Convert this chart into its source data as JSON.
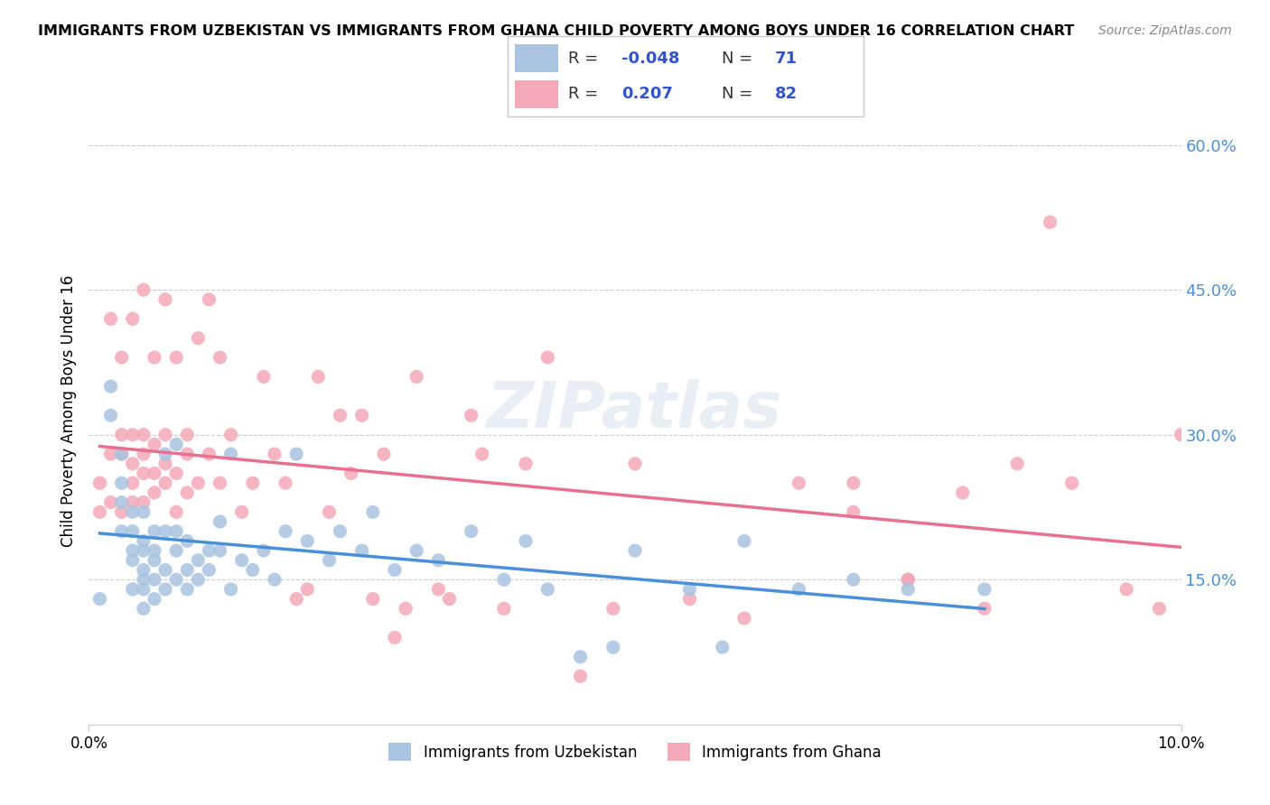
{
  "title": "IMMIGRANTS FROM UZBEKISTAN VS IMMIGRANTS FROM GHANA CHILD POVERTY AMONG BOYS UNDER 16 CORRELATION CHART",
  "source": "Source: ZipAtlas.com",
  "xlabel": "",
  "ylabel": "Child Poverty Among Boys Under 16",
  "xlim": [
    0.0,
    0.1
  ],
  "ylim": [
    0.0,
    0.65
  ],
  "yticks": [
    0.15,
    0.3,
    0.45,
    0.6
  ],
  "ytick_labels": [
    "15.0%",
    "30.0%",
    "45.0%",
    "60.0%"
  ],
  "xticks": [
    0.0,
    0.1
  ],
  "xtick_labels": [
    "0.0%",
    "10.0%"
  ],
  "uzbekistan_color": "#a8c4e0",
  "ghana_color": "#f4a8b8",
  "uzbekistan_R": -0.048,
  "uzbekistan_N": 71,
  "ghana_R": 0.207,
  "ghana_N": 82,
  "uzbekistan_line_color": "#4a90d9",
  "ghana_line_color": "#e87090",
  "right_axis_color": "#4a90d9",
  "watermark": "ZIPatlas",
  "legend_label_uzbekistan": "Immigrants from Uzbekistan",
  "legend_label_ghana": "Immigrants from Ghana",
  "uzbekistan_x": [
    0.001,
    0.002,
    0.002,
    0.003,
    0.003,
    0.003,
    0.003,
    0.004,
    0.004,
    0.004,
    0.004,
    0.004,
    0.005,
    0.005,
    0.005,
    0.005,
    0.005,
    0.005,
    0.005,
    0.006,
    0.006,
    0.006,
    0.006,
    0.006,
    0.007,
    0.007,
    0.007,
    0.007,
    0.008,
    0.008,
    0.008,
    0.008,
    0.009,
    0.009,
    0.009,
    0.01,
    0.01,
    0.011,
    0.011,
    0.012,
    0.012,
    0.013,
    0.013,
    0.014,
    0.015,
    0.016,
    0.017,
    0.018,
    0.019,
    0.02,
    0.022,
    0.023,
    0.025,
    0.026,
    0.028,
    0.03,
    0.032,
    0.035,
    0.038,
    0.04,
    0.042,
    0.045,
    0.048,
    0.05,
    0.055,
    0.058,
    0.06,
    0.065,
    0.07,
    0.075,
    0.082
  ],
  "uzbekistan_y": [
    0.13,
    0.32,
    0.35,
    0.2,
    0.23,
    0.25,
    0.28,
    0.14,
    0.17,
    0.18,
    0.2,
    0.22,
    0.12,
    0.14,
    0.15,
    0.16,
    0.18,
    0.19,
    0.22,
    0.13,
    0.15,
    0.17,
    0.18,
    0.2,
    0.14,
    0.16,
    0.2,
    0.28,
    0.15,
    0.18,
    0.2,
    0.29,
    0.14,
    0.16,
    0.19,
    0.15,
    0.17,
    0.16,
    0.18,
    0.18,
    0.21,
    0.14,
    0.28,
    0.17,
    0.16,
    0.18,
    0.15,
    0.2,
    0.28,
    0.19,
    0.17,
    0.2,
    0.18,
    0.22,
    0.16,
    0.18,
    0.17,
    0.2,
    0.15,
    0.19,
    0.14,
    0.07,
    0.08,
    0.18,
    0.14,
    0.08,
    0.19,
    0.14,
    0.15,
    0.14,
    0.14
  ],
  "ghana_x": [
    0.001,
    0.001,
    0.002,
    0.002,
    0.002,
    0.003,
    0.003,
    0.003,
    0.003,
    0.004,
    0.004,
    0.004,
    0.004,
    0.004,
    0.005,
    0.005,
    0.005,
    0.005,
    0.005,
    0.006,
    0.006,
    0.006,
    0.006,
    0.007,
    0.007,
    0.007,
    0.007,
    0.008,
    0.008,
    0.008,
    0.009,
    0.009,
    0.009,
    0.01,
    0.01,
    0.011,
    0.011,
    0.012,
    0.012,
    0.013,
    0.014,
    0.015,
    0.016,
    0.017,
    0.018,
    0.019,
    0.02,
    0.021,
    0.022,
    0.023,
    0.024,
    0.025,
    0.026,
    0.027,
    0.028,
    0.029,
    0.03,
    0.032,
    0.033,
    0.035,
    0.036,
    0.038,
    0.04,
    0.042,
    0.045,
    0.048,
    0.05,
    0.055,
    0.06,
    0.065,
    0.07,
    0.075,
    0.08,
    0.085,
    0.088,
    0.07,
    0.075,
    0.082,
    0.09,
    0.095,
    0.098,
    0.1
  ],
  "ghana_y": [
    0.22,
    0.25,
    0.23,
    0.28,
    0.42,
    0.22,
    0.28,
    0.3,
    0.38,
    0.23,
    0.25,
    0.27,
    0.3,
    0.42,
    0.23,
    0.26,
    0.28,
    0.3,
    0.45,
    0.24,
    0.26,
    0.29,
    0.38,
    0.25,
    0.27,
    0.3,
    0.44,
    0.22,
    0.26,
    0.38,
    0.24,
    0.28,
    0.3,
    0.25,
    0.4,
    0.28,
    0.44,
    0.25,
    0.38,
    0.3,
    0.22,
    0.25,
    0.36,
    0.28,
    0.25,
    0.13,
    0.14,
    0.36,
    0.22,
    0.32,
    0.26,
    0.32,
    0.13,
    0.28,
    0.09,
    0.12,
    0.36,
    0.14,
    0.13,
    0.32,
    0.28,
    0.12,
    0.27,
    0.38,
    0.05,
    0.12,
    0.27,
    0.13,
    0.11,
    0.25,
    0.22,
    0.15,
    0.24,
    0.27,
    0.52,
    0.25,
    0.15,
    0.12,
    0.25,
    0.14,
    0.12,
    0.3
  ]
}
